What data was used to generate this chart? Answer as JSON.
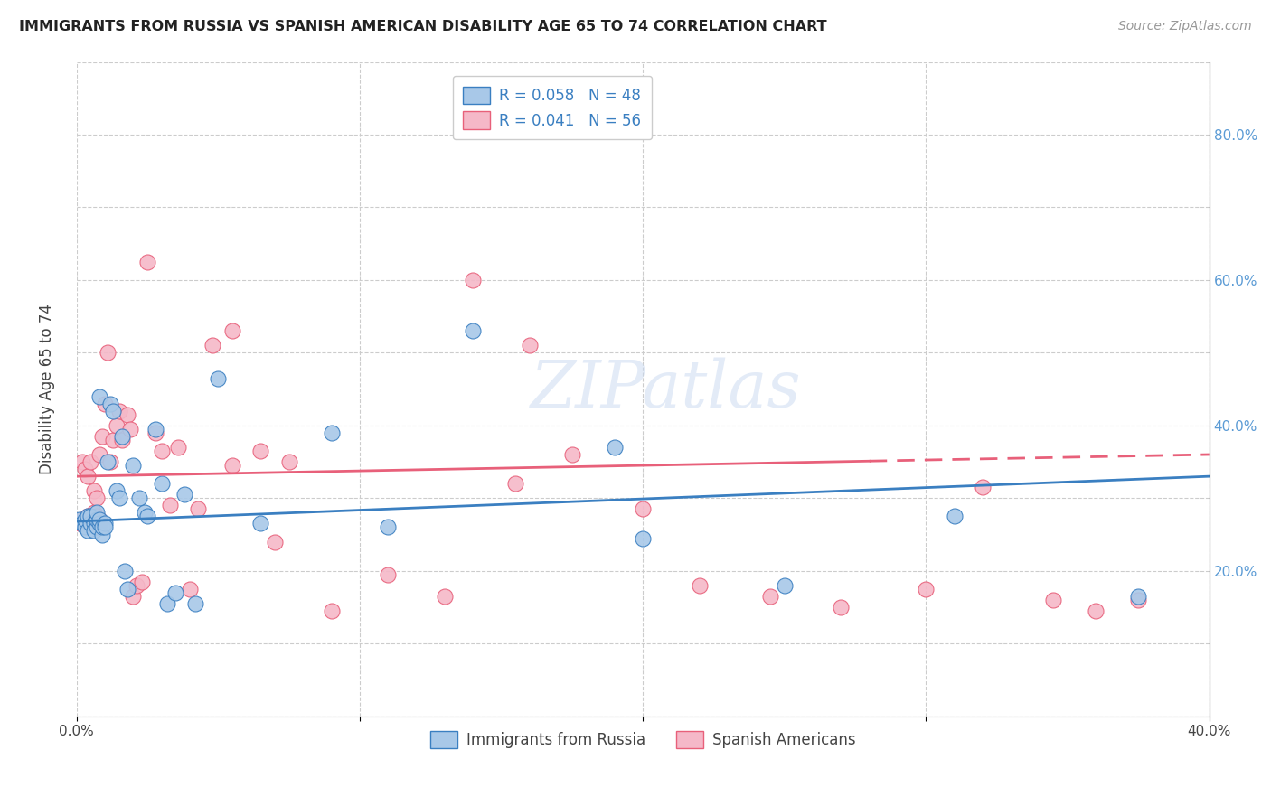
{
  "title": "IMMIGRANTS FROM RUSSIA VS SPANISH AMERICAN DISABILITY AGE 65 TO 74 CORRELATION CHART",
  "source": "Source: ZipAtlas.com",
  "ylabel": "Disability Age 65 to 74",
  "xlim": [
    0.0,
    0.4
  ],
  "ylim": [
    0.0,
    0.9
  ],
  "x_tick_positions": [
    0.0,
    0.1,
    0.2,
    0.3,
    0.4
  ],
  "x_tick_labels": [
    "0.0%",
    "",
    "",
    "",
    "40.0%"
  ],
  "y_tick_positions": [
    0.0,
    0.1,
    0.2,
    0.3,
    0.4,
    0.5,
    0.6,
    0.7,
    0.8,
    0.9
  ],
  "y_tick_labels_right": [
    "",
    "",
    "20.0%",
    "",
    "40.0%",
    "",
    "60.0%",
    "",
    "80.0%",
    ""
  ],
  "blue_color": "#A8C8E8",
  "pink_color": "#F5B8C8",
  "blue_line_color": "#3A7FC1",
  "pink_line_color": "#E8607A",
  "legend_blue_label": "R = 0.058   N = 48",
  "legend_pink_label": "R = 0.041   N = 56",
  "legend_bottom_blue": "Immigrants from Russia",
  "legend_bottom_pink": "Spanish Americans",
  "blue_x": [
    0.001,
    0.002,
    0.003,
    0.003,
    0.004,
    0.004,
    0.005,
    0.005,
    0.006,
    0.006,
    0.007,
    0.007,
    0.007,
    0.008,
    0.008,
    0.008,
    0.009,
    0.009,
    0.01,
    0.01,
    0.011,
    0.012,
    0.013,
    0.014,
    0.015,
    0.016,
    0.017,
    0.018,
    0.02,
    0.022,
    0.024,
    0.025,
    0.028,
    0.03,
    0.032,
    0.035,
    0.038,
    0.042,
    0.05,
    0.065,
    0.09,
    0.11,
    0.14,
    0.19,
    0.2,
    0.25,
    0.31,
    0.375
  ],
  "blue_y": [
    0.27,
    0.265,
    0.26,
    0.27,
    0.275,
    0.255,
    0.265,
    0.275,
    0.265,
    0.255,
    0.26,
    0.27,
    0.28,
    0.265,
    0.27,
    0.44,
    0.25,
    0.26,
    0.265,
    0.26,
    0.35,
    0.43,
    0.42,
    0.31,
    0.3,
    0.385,
    0.2,
    0.175,
    0.345,
    0.3,
    0.28,
    0.275,
    0.395,
    0.32,
    0.155,
    0.17,
    0.305,
    0.155,
    0.465,
    0.265,
    0.39,
    0.26,
    0.53,
    0.37,
    0.245,
    0.18,
    0.275,
    0.165
  ],
  "pink_x": [
    0.001,
    0.002,
    0.002,
    0.003,
    0.004,
    0.004,
    0.005,
    0.005,
    0.006,
    0.006,
    0.007,
    0.007,
    0.008,
    0.008,
    0.009,
    0.01,
    0.011,
    0.012,
    0.013,
    0.014,
    0.015,
    0.016,
    0.018,
    0.019,
    0.02,
    0.021,
    0.023,
    0.025,
    0.028,
    0.03,
    0.033,
    0.036,
    0.04,
    0.043,
    0.048,
    0.055,
    0.065,
    0.075,
    0.09,
    0.11,
    0.13,
    0.155,
    0.175,
    0.2,
    0.22,
    0.245,
    0.27,
    0.3,
    0.32,
    0.345,
    0.36,
    0.375,
    0.14,
    0.16,
    0.055,
    0.07
  ],
  "pink_y": [
    0.265,
    0.27,
    0.35,
    0.34,
    0.275,
    0.33,
    0.265,
    0.35,
    0.28,
    0.31,
    0.3,
    0.275,
    0.36,
    0.27,
    0.385,
    0.43,
    0.5,
    0.35,
    0.38,
    0.4,
    0.42,
    0.38,
    0.415,
    0.395,
    0.165,
    0.18,
    0.185,
    0.625,
    0.39,
    0.365,
    0.29,
    0.37,
    0.175,
    0.285,
    0.51,
    0.53,
    0.365,
    0.35,
    0.145,
    0.195,
    0.165,
    0.32,
    0.36,
    0.285,
    0.18,
    0.165,
    0.15,
    0.175,
    0.315,
    0.16,
    0.145,
    0.16,
    0.6,
    0.51,
    0.345,
    0.24
  ],
  "blue_line_x": [
    0.0,
    0.4
  ],
  "blue_line_y": [
    0.268,
    0.33
  ],
  "pink_line_x": [
    0.0,
    0.4
  ],
  "pink_line_y": [
    0.33,
    0.36
  ]
}
